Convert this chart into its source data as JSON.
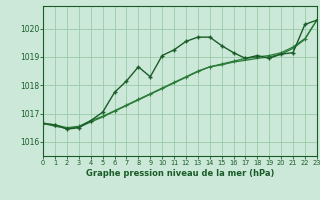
{
  "title": "Graphe pression niveau de la mer (hPa)",
  "background_color": "#cce8d8",
  "grid_color": "#99ccaa",
  "line_color_dark": "#1a5c28",
  "line_color_mid": "#2a7a38",
  "line_color_light": "#3a9a48",
  "xlim": [
    0,
    23
  ],
  "ylim": [
    1015.5,
    1020.8
  ],
  "yticks": [
    1016,
    1017,
    1018,
    1019,
    1020
  ],
  "xticks": [
    0,
    1,
    2,
    3,
    4,
    5,
    6,
    7,
    8,
    9,
    10,
    11,
    12,
    13,
    14,
    15,
    16,
    17,
    18,
    19,
    20,
    21,
    22,
    23
  ],
  "series1_x": [
    0,
    1,
    2,
    3,
    4,
    5,
    6,
    7,
    8,
    9,
    10,
    11,
    12,
    13,
    14,
    15,
    16,
    17,
    18,
    19,
    20,
    21,
    22,
    23
  ],
  "series1_y": [
    1016.65,
    1016.6,
    1016.45,
    1016.5,
    1016.75,
    1017.05,
    1017.75,
    1018.15,
    1018.65,
    1018.3,
    1019.05,
    1019.25,
    1019.55,
    1019.7,
    1019.7,
    1019.4,
    1019.15,
    1018.95,
    1019.05,
    1018.95,
    1019.1,
    1019.15,
    1020.15,
    1020.3
  ],
  "series2_x": [
    0,
    1,
    2,
    3,
    4,
    5,
    6,
    7,
    8,
    9,
    10,
    11,
    12,
    13,
    14,
    15,
    16,
    17,
    18,
    19,
    20,
    21,
    22,
    23
  ],
  "series2_y": [
    1016.65,
    1016.6,
    1016.5,
    1016.55,
    1016.75,
    1016.9,
    1017.1,
    1017.3,
    1017.5,
    1017.7,
    1017.9,
    1018.1,
    1018.3,
    1018.5,
    1018.65,
    1018.75,
    1018.85,
    1018.95,
    1019.0,
    1019.05,
    1019.15,
    1019.35,
    1019.65,
    1020.3
  ],
  "series3_x": [
    0,
    1,
    2,
    3,
    4,
    5,
    6,
    7,
    8,
    9,
    10,
    11,
    12,
    13,
    14,
    15,
    16,
    17,
    18,
    19,
    20,
    21,
    22,
    23
  ],
  "series3_y": [
    1016.65,
    1016.55,
    1016.48,
    1016.52,
    1016.7,
    1016.88,
    1017.08,
    1017.28,
    1017.48,
    1017.68,
    1017.88,
    1018.08,
    1018.28,
    1018.48,
    1018.65,
    1018.72,
    1018.82,
    1018.88,
    1018.95,
    1019.0,
    1019.1,
    1019.3,
    1019.62,
    1020.3
  ]
}
